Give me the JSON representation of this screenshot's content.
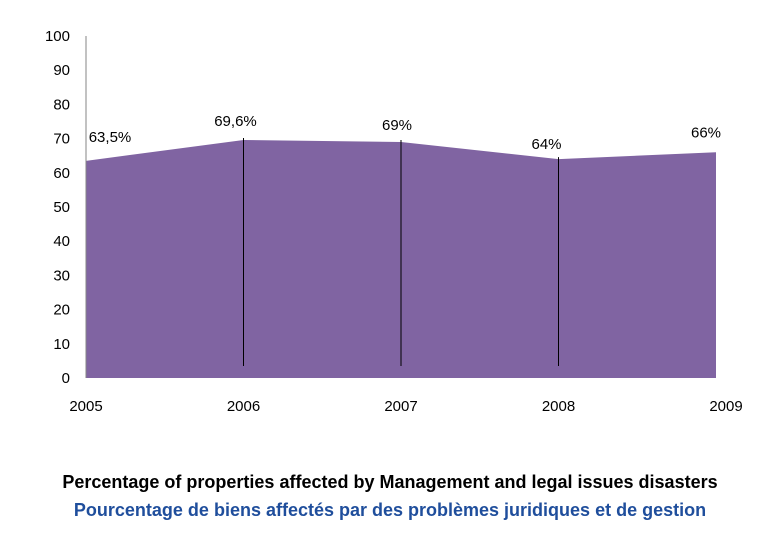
{
  "chart_data": {
    "type": "area",
    "x": [
      "2005",
      "2006",
      "2007",
      "2008",
      "2009"
    ],
    "series": [
      {
        "name": "Percentage of properties affected",
        "values": [
          63.5,
          69.6,
          69,
          64,
          66
        ]
      }
    ],
    "data_labels": [
      "63,5%",
      "69,6%",
      "69%",
      "64%",
      "66%"
    ],
    "y_ticks": [
      "0",
      "10",
      "20",
      "30",
      "40",
      "50",
      "60",
      "70",
      "80",
      "90",
      "100"
    ],
    "ylim": [
      0,
      100
    ],
    "fill_color": "#8064a2",
    "title": "Percentage of properties affected by Management and legal issues disasters",
    "subtitle": "Pourcentage de biens affectés par des problèmes juridiques et de gestion",
    "grid": false,
    "legend": "none"
  }
}
